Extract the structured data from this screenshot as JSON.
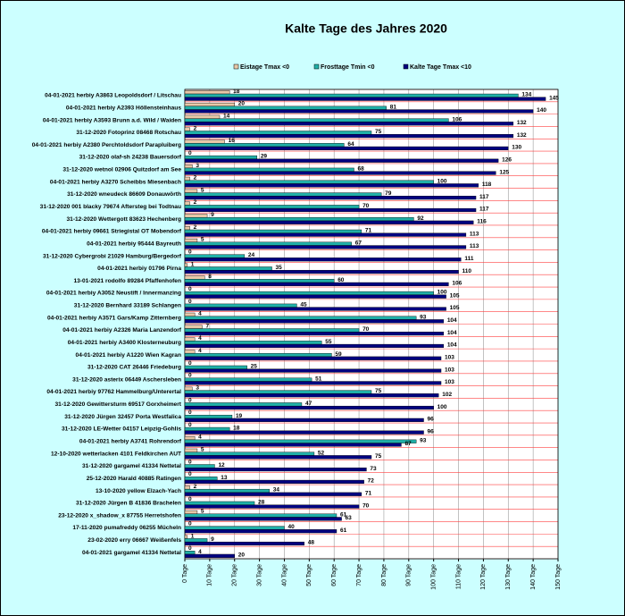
{
  "chart_data": {
    "type": "bar",
    "orientation": "horizontal",
    "title": "Kalte Tage des Jahres 2020",
    "categories": [
      "04-01-2021 herbiy A3863 Leopoldsdorf / Litschau",
      "04-01-2021 herbiy A2393 Höllensteinhaus",
      "04-01-2021 herbiy A3593 Brunn a.d. Wild / Waiden",
      "31-12-2020 Fotoprinz 08468 Rotschau",
      "04-01-2021 herbiy A2380 Perchtoldsdorf Parapluiberg",
      "31-12-2020 olaf-sh 24238 Bauersdorf",
      "31-12-2020 wetnol 02906 Quitzdorf am See",
      "04-01-2021 herbiy A3270 Scheibbs Miesenbach",
      "31-12-2020 wneudeck 86609 Donauwörth",
      "31-12-2020 001 blacky 79674 Aftersteg bei Todtnau",
      "31-12-2020 Wettergott 83623 Hechenberg",
      "04-01-2021 herbiy 09661 Striegistal OT Mobendorf",
      "04-01-2021 herbiy 95444 Bayreuth",
      "31-12-2020 Cybergrobi 21029 Hamburg/Bergedorf",
      "04-01-2021 herbiy 01796 Pirna",
      "13-01-2021 rodolfo 89284 Pfaffenhofen",
      "04-01-2021 herbiy A3052 Neustift / Innermanzing",
      "31-12-2020 Bernhard 33189 Schlangen",
      "04-01-2021 herbiy A3571 Gars/Kamp Zitternberg",
      "04-01-2021 herbiy A2326 Maria Lanzendorf",
      "04-01-2021 herbiy A3400 Klosterneuburg",
      "04-01-2021 herbiy A1220 Wien Kagran",
      "31-12-2020 CAT 26446 Friedeburg",
      "31-12-2020 asterix 06449 Aschersleben",
      "04-01-2021 herbiy 97762 Hammelburg/Unterertal",
      "31-12-2020 Gewittersturm 69517 Gorxheimert",
      "31-12-2020 Jürgen 32457 Porta Westfalica",
      "31-12-2020 LE-Wetter 04157 Leipzig-Gohlis",
      "04-01-2021 herbiy A3741 Rohrendorf",
      "12-10-2020 wetterlacken 4101 Feldkirchen AUT",
      "31-12-2020 gargamel 41334 Nettetal",
      "25-12-2020 Harald 40885 Ratingen",
      "13-10-2020 yellow Elzach-Yach",
      "31-12-2020 Jürgen B 41836 Brachelen",
      "23-12-2020 x_shadow_x 87755 Herretshofen",
      "17-11-2020 pumafreddy 06255 Mücheln",
      "23-02-2020 erry 06667 Weißenfels",
      "04-01-2021 gargamel 41334 Nettetal"
    ],
    "series": [
      {
        "name": "Eistage Tmax <0",
        "color": "#e8c8a8",
        "values": [
          18,
          20,
          14,
          2,
          16,
          0,
          3,
          2,
          5,
          2,
          9,
          2,
          5,
          0,
          1,
          8,
          0,
          0,
          4,
          7,
          4,
          4,
          0,
          0,
          3,
          0,
          0,
          0,
          4,
          5,
          0,
          0,
          2,
          0,
          5,
          0,
          1,
          0
        ]
      },
      {
        "name": "Frosttage Tmin <0",
        "color": "#20b0a8",
        "values": [
          134,
          81,
          106,
          75,
          64,
          29,
          68,
          100,
          79,
          70,
          92,
          71,
          67,
          24,
          35,
          60,
          100,
          45,
          93,
          70,
          55,
          59,
          25,
          51,
          75,
          47,
          19,
          18,
          93,
          52,
          12,
          13,
          34,
          28,
          61,
          40,
          9,
          4
        ]
      },
      {
        "name": "Kalte Tage Tmax <10",
        "color": "#000080",
        "values": [
          145,
          140,
          132,
          132,
          130,
          126,
          125,
          118,
          117,
          117,
          116,
          113,
          113,
          111,
          110,
          106,
          105,
          105,
          104,
          104,
          104,
          103,
          103,
          103,
          102,
          100,
          96,
          96,
          87,
          75,
          73,
          72,
          71,
          70,
          63,
          61,
          48,
          20
        ]
      }
    ],
    "xlim": [
      0,
      150
    ],
    "xticks": [
      {
        "value": 0,
        "label": "0 Tage"
      },
      {
        "value": 10,
        "label": "10 Tage"
      },
      {
        "value": 20,
        "label": "20 Tage"
      },
      {
        "value": 30,
        "label": "30 Tage"
      },
      {
        "value": 40,
        "label": "40 Tage"
      },
      {
        "value": 50,
        "label": "50 Tage"
      },
      {
        "value": 60,
        "label": "60 Tage"
      },
      {
        "value": 70,
        "label": "70 Tage"
      },
      {
        "value": 80,
        "label": "80 Tage"
      },
      {
        "value": 90,
        "label": "90 Tage"
      },
      {
        "value": 100,
        "label": "100 Tage"
      },
      {
        "value": 110,
        "label": "110 Tage"
      },
      {
        "value": 120,
        "label": "120 Tage"
      },
      {
        "value": 130,
        "label": "130 Tage"
      },
      {
        "value": 140,
        "label": "140 Tage"
      },
      {
        "value": 150,
        "label": "150 Tage"
      }
    ],
    "grid": true,
    "legend": "top"
  }
}
